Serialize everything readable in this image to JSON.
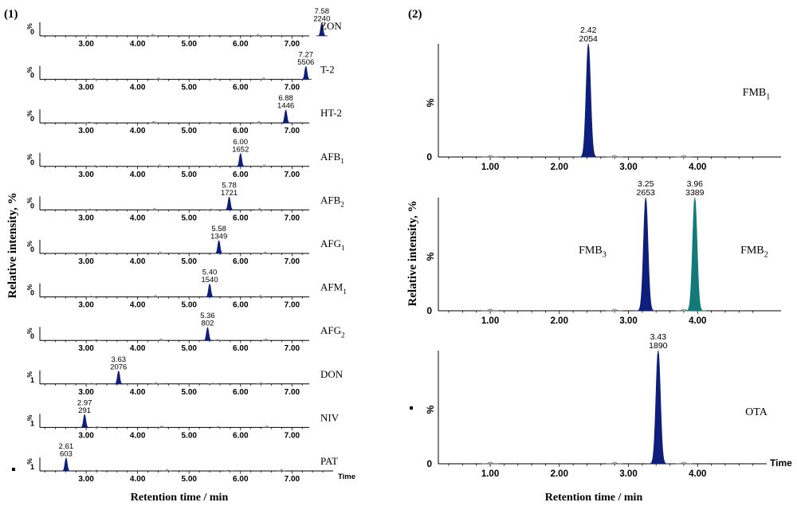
{
  "chart_data": {
    "type": "line",
    "left_panel": {
      "label": "(1)",
      "ylabel": "Relative intensity, %",
      "xlabel": "Retention time / min",
      "tick_labels": [
        "3.00",
        "4.00",
        "5.00",
        "6.00",
        "7.00"
      ],
      "tick_values": [
        3,
        4,
        5,
        6,
        7
      ],
      "xlim": [
        2.1,
        7.8
      ],
      "x_axis_end_label": "Time",
      "traces": [
        {
          "name": "ZON",
          "sub": "",
          "rt": 7.58,
          "rt_label": "7.58",
          "area_label": "2240",
          "y_zero": "0",
          "y_pct": "%",
          "color": "#0d1f7a"
        },
        {
          "name": "T-2",
          "sub": "",
          "rt": 7.27,
          "rt_label": "7.27",
          "area_label": "5506",
          "y_zero": "0",
          "y_pct": "%",
          "color": "#0d1f7a"
        },
        {
          "name": "HT-2",
          "sub": "",
          "rt": 6.88,
          "rt_label": "6.88",
          "area_label": "1446",
          "y_zero": "0",
          "y_pct": "%",
          "color": "#0d1f7a"
        },
        {
          "name": "AFB",
          "sub": "1",
          "rt": 6.0,
          "rt_label": "6.00",
          "area_label": "1652",
          "y_zero": "0",
          "y_pct": "%",
          "color": "#0d1f7a"
        },
        {
          "name": "AFB",
          "sub": "2",
          "rt": 5.78,
          "rt_label": "5.78",
          "area_label": "1721",
          "y_zero": "0",
          "y_pct": "%",
          "color": "#0d1f7a"
        },
        {
          "name": "AFG",
          "sub": "1",
          "rt": 5.58,
          "rt_label": "5.58",
          "area_label": "1349",
          "y_zero": "0",
          "y_pct": "%",
          "color": "#0d1f7a"
        },
        {
          "name": "AFM",
          "sub": "1",
          "rt": 5.4,
          "rt_label": "5.40",
          "area_label": "1540",
          "y_zero": "0",
          "y_pct": "%",
          "color": "#0d1f7a"
        },
        {
          "name": "AFG",
          "sub": "2",
          "rt": 5.36,
          "rt_label": "5.36",
          "area_label": "802",
          "y_zero": "0",
          "y_pct": "%",
          "color": "#0d1f7a"
        },
        {
          "name": "DON",
          "sub": "",
          "rt": 3.63,
          "rt_label": "3.63",
          "area_label": "2076",
          "y_zero": "1",
          "y_pct": "%",
          "color": "#0d1f7a"
        },
        {
          "name": "NIV",
          "sub": "",
          "rt": 2.97,
          "rt_label": "2.97",
          "area_label": "291",
          "y_zero": "1",
          "y_pct": "%",
          "color": "#0d1f7a"
        },
        {
          "name": "PAT",
          "sub": "",
          "rt": 2.61,
          "rt_label": "2.61",
          "area_label": "603",
          "y_zero": "1",
          "y_pct": "%",
          "color": "#0d1f7a"
        }
      ]
    },
    "right_panel": {
      "label": "(2)",
      "ylabel": "Relative intensity, %",
      "xlabel": "Retention time / min",
      "tick_labels": [
        "1.00",
        "2.00",
        "3.00",
        "4.00"
      ],
      "tick_values": [
        1,
        2,
        3,
        4
      ],
      "xlim": [
        0.25,
        5.0
      ],
      "x_axis_end_label": "Time",
      "panels": [
        {
          "y_zero": "0",
          "y_pct": "%",
          "peaks": [
            {
              "rt": 2.42,
              "rt_label": "2.42",
              "area_label": "2054",
              "color": "#0d1f7a"
            }
          ],
          "names": [
            {
              "name": "FMB",
              "sub": "1",
              "anchor_rt": 4.85
            }
          ]
        },
        {
          "y_zero": "0",
          "y_pct": "%",
          "peaks": [
            {
              "rt": 3.25,
              "rt_label": "3.25",
              "area_label": "2653",
              "color": "#0d1f7a"
            },
            {
              "rt": 3.96,
              "rt_label": "3.96",
              "area_label": "3389",
              "color": "#137a78"
            }
          ],
          "names": [
            {
              "name": "FMB",
              "sub": "3",
              "anchor_rt": 2.48
            },
            {
              "name": "FMB",
              "sub": "2",
              "anchor_rt": 4.82
            }
          ]
        },
        {
          "y_zero": "0",
          "y_pct": "%",
          "peaks": [
            {
              "rt": 3.43,
              "rt_label": "3.43",
              "area_label": "1890",
              "color": "#0d1f7a"
            }
          ],
          "names": [
            {
              "name": "OTA",
              "sub": "",
              "anchor_rt": 4.85
            }
          ]
        }
      ]
    }
  }
}
